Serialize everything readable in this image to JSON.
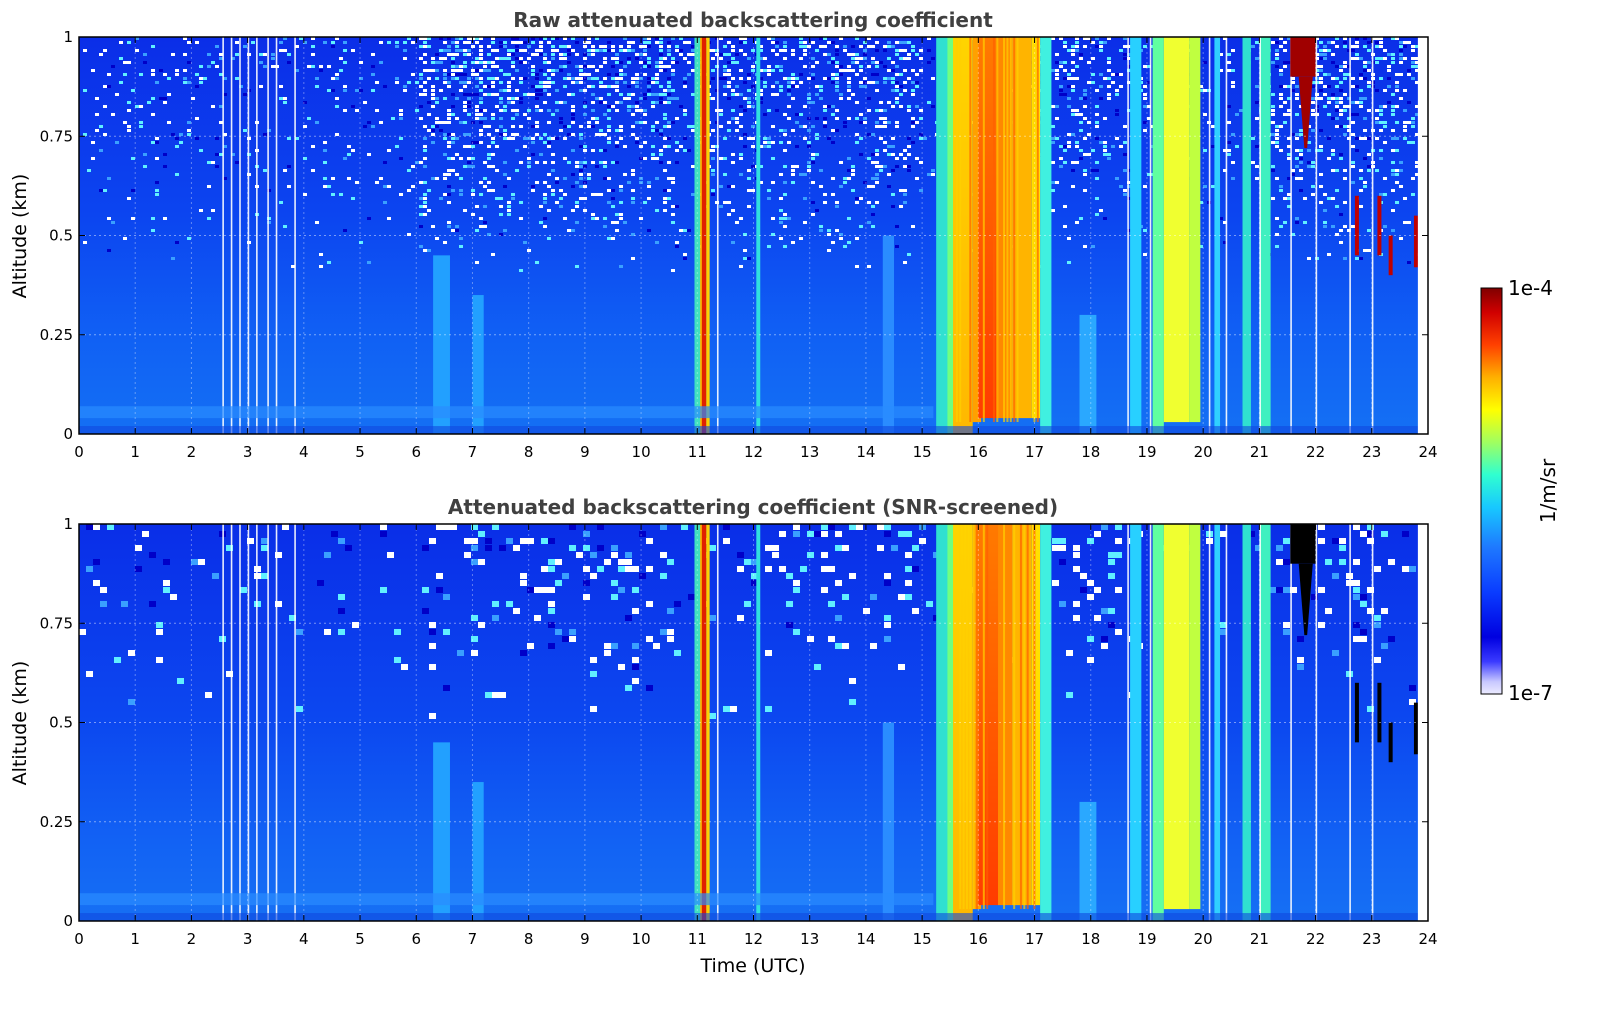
{
  "chart_data": [
    {
      "type": "heatmap",
      "title": "Raw attenuated backscattering coefficient",
      "xlabel": "",
      "ylabel": "Altitude (km)",
      "xlim": [
        0,
        24
      ],
      "ylim": [
        0,
        1
      ],
      "x_ticks": [
        "0",
        "1",
        "2",
        "3",
        "4",
        "5",
        "6",
        "7",
        "8",
        "9",
        "10",
        "11",
        "12",
        "13",
        "14",
        "15",
        "16",
        "17",
        "18",
        "19",
        "20",
        "21",
        "22",
        "23",
        "24"
      ],
      "y_ticks": [
        "0",
        "0.25",
        "0.5",
        "0.75",
        "1"
      ],
      "grid": true,
      "colormap": "jet",
      "screened": false,
      "features": [
        {
          "x0": 0,
          "x1": 10.5,
          "note": "background aerosol, low values, noisy above 0.5 km"
        },
        {
          "x0": 11.0,
          "x1": 11.2,
          "level": "high",
          "note": "narrow precipitation/cloud column"
        },
        {
          "x0": 15.3,
          "x1": 17.1,
          "level": "high",
          "note": "strong column, core 16.0–16.6"
        },
        {
          "x0": 19.1,
          "x1": 19.9,
          "level": "medium-high",
          "note": "column"
        },
        {
          "x0": 21.5,
          "x1": 22.0,
          "y0": 0.75,
          "y1": 1.0,
          "level": "very high",
          "note": "cloud at top"
        },
        {
          "x0": 22.7,
          "x1": 23.8,
          "y0": 0.4,
          "y1": 0.6,
          "level": "very high",
          "note": "descending cloud fragments"
        }
      ]
    },
    {
      "type": "heatmap",
      "title": "Attenuated backscattering coefficient (SNR-screened)",
      "xlabel": "Time (UTC)",
      "ylabel": "Altitude (km)",
      "xlim": [
        0,
        24
      ],
      "ylim": [
        0,
        1
      ],
      "x_ticks": [
        "0",
        "1",
        "2",
        "3",
        "4",
        "5",
        "6",
        "7",
        "8",
        "9",
        "10",
        "11",
        "12",
        "13",
        "14",
        "15",
        "16",
        "17",
        "18",
        "19",
        "20",
        "21",
        "22",
        "23",
        "24"
      ],
      "y_ticks": [
        "0",
        "0.25",
        "0.5",
        "0.75",
        "1"
      ],
      "grid": true,
      "colormap": "jet",
      "screened": true
    }
  ],
  "colorbar": {
    "max_label": "1e-4",
    "min_label": "1e-7",
    "unit_label": "1/m/sr",
    "scale": "log"
  },
  "colors": {
    "title": "#404040",
    "grid": "#ffffff"
  }
}
